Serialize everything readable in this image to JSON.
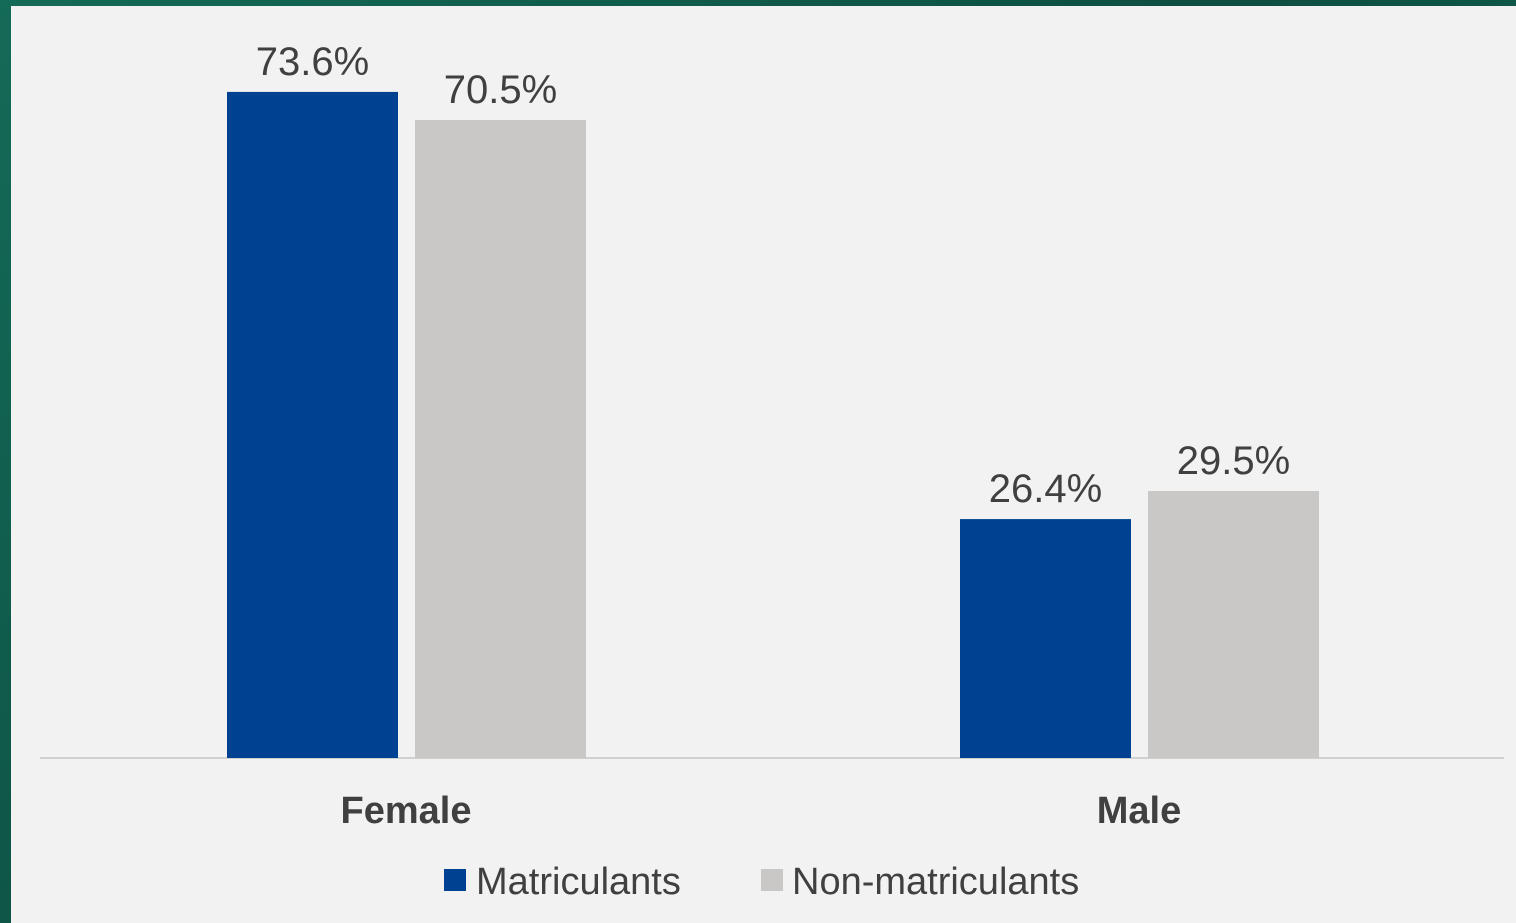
{
  "chart_data": {
    "type": "bar",
    "categories": [
      "Female",
      "Male"
    ],
    "series": [
      {
        "name": "Matriculants",
        "values": [
          73.6,
          26.4
        ],
        "labels": [
          "73.6%",
          "26.4%"
        ],
        "color": "#004291"
      },
      {
        "name": "Non-matriculants",
        "values": [
          70.5,
          29.5
        ],
        "labels": [
          "70.5%",
          "29.5%"
        ],
        "color": "#c9c8c7"
      }
    ],
    "ylim": [
      0,
      80
    ],
    "grid": false,
    "legend": "bottom",
    "background": "#f2f2f2",
    "axis_color": "#d0d0d0",
    "frame_color": "#0f5a4a"
  }
}
